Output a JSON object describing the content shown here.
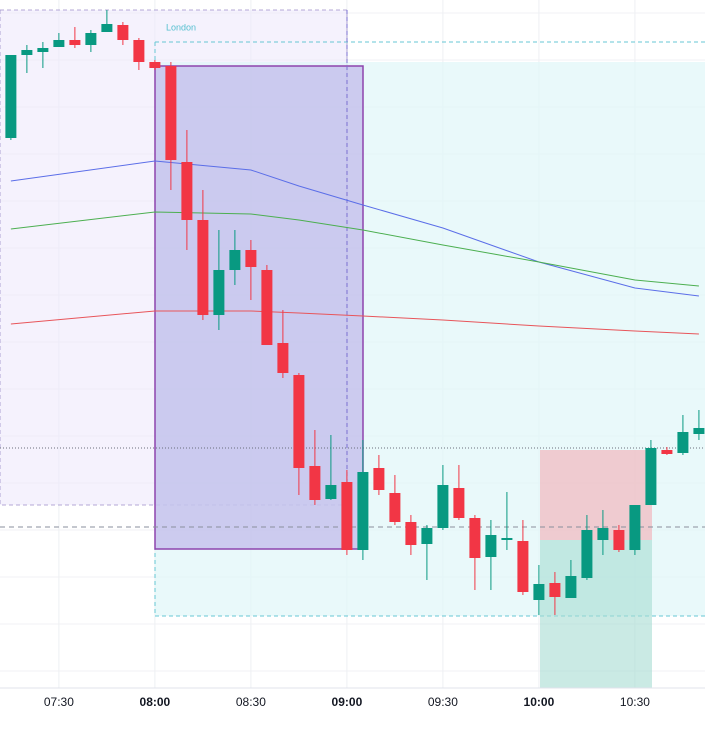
{
  "chart_data": {
    "type": "candlestick",
    "annotation": "London",
    "x": [
      435,
      440,
      445,
      450,
      455,
      460,
      465,
      470,
      475,
      480,
      485,
      490,
      495,
      500,
      505,
      510,
      515,
      520,
      525,
      530,
      535,
      540,
      545,
      550,
      555,
      560,
      565,
      570,
      575,
      580,
      585,
      590,
      595,
      600,
      605,
      610,
      615,
      620,
      625,
      630,
      635,
      640,
      645,
      650
    ],
    "open": [
      552,
      635,
      638,
      643,
      650,
      645,
      658,
      665,
      650,
      628,
      624,
      528,
      470,
      375,
      420,
      440,
      420,
      347,
      315,
      224,
      191,
      208,
      140,
      222,
      197,
      168,
      146,
      162,
      202,
      172,
      133,
      150,
      149,
      90,
      107,
      92,
      112,
      150,
      160,
      140,
      185,
      240,
      237,
      256
    ],
    "high": [
      635,
      645,
      648,
      657,
      663,
      660,
      680,
      668,
      652,
      630,
      628,
      560,
      500,
      460,
      460,
      450,
      425,
      380,
      317,
      260,
      255,
      220,
      250,
      235,
      215,
      175,
      165,
      225,
      225,
      175,
      170,
      198,
      170,
      125,
      118,
      130,
      175,
      180,
      165,
      185,
      250,
      243,
      275,
      280
    ],
    "low": [
      550,
      617,
      622,
      643,
      642,
      638,
      658,
      645,
      620,
      620,
      500,
      440,
      370,
      360,
      405,
      390,
      345,
      312,
      195,
      185,
      190,
      135,
      130,
      195,
      165,
      135,
      110,
      160,
      170,
      100,
      100,
      140,
      95,
      75,
      75,
      92,
      110,
      135,
      138,
      135,
      185,
      235,
      235,
      250
    ],
    "close": [
      635,
      640,
      642,
      650,
      645,
      657,
      666,
      650,
      628,
      622,
      530,
      470,
      375,
      420,
      440,
      423,
      345,
      317,
      222,
      190,
      205,
      140,
      218,
      200,
      168,
      145,
      162,
      205,
      172,
      132,
      155,
      152,
      98,
      106,
      93,
      114,
      160,
      162,
      140,
      185,
      242,
      236,
      258,
      262
    ],
    "up_color": "#089981",
    "down_color": "#f23645",
    "lines": [
      {
        "color": "#5b6ee8",
        "x": [
          435,
          480,
          510,
          525,
          545,
          570,
          600,
          630,
          650
        ],
        "values": [
          509,
          529,
          520,
          504,
          485,
          462,
          428,
          402,
          394
        ]
      },
      {
        "color": "#4caf50",
        "x": [
          435,
          480,
          510,
          525,
          545,
          570,
          600,
          630,
          650
        ],
        "values": [
          461,
          478,
          476,
          470,
          460,
          445,
          428,
          410,
          404
        ]
      },
      {
        "color": "#e8555a",
        "x": [
          435,
          480,
          510,
          525,
          545,
          570,
          600,
          630,
          650
        ],
        "values": [
          366,
          379,
          379,
          377,
          374,
          370,
          364,
          359,
          356
        ]
      }
    ],
    "xlim": [
      431.6,
      651.9
    ],
    "ylim": [
      0,
      690
    ],
    "xticks": [
      {
        "value": 450,
        "label": "07:30"
      },
      {
        "value": 480,
        "label": "08:00"
      },
      {
        "value": 510,
        "label": "08:30"
      },
      {
        "value": 540,
        "label": "09:00"
      },
      {
        "value": 570,
        "label": "09:30"
      },
      {
        "value": 600,
        "label": "10:00"
      },
      {
        "value": 630,
        "label": "10:30"
      }
    ],
    "grid": true
  }
}
